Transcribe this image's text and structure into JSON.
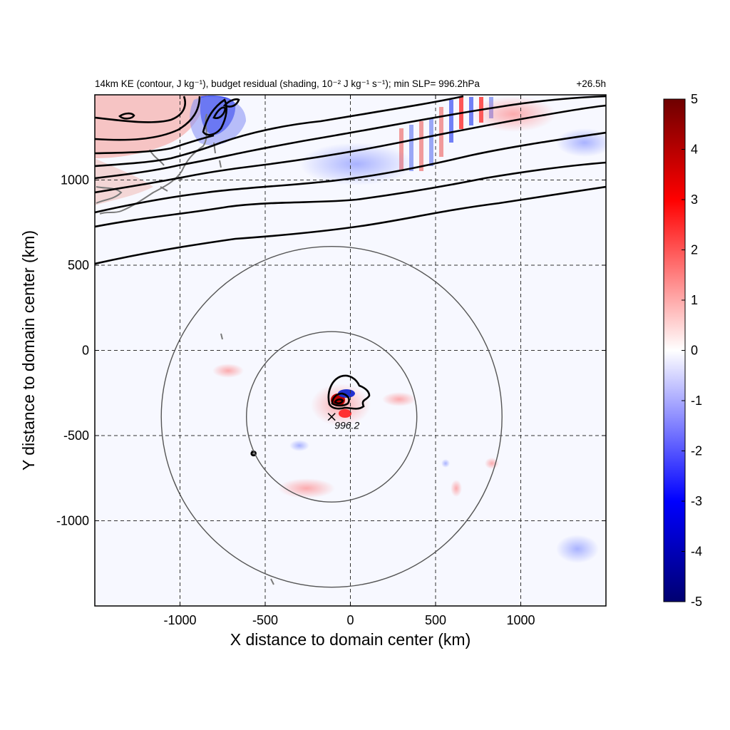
{
  "figure": {
    "title_left": "14km KE (contour, J kg⁻¹), budget residual (shading, 10⁻² J kg⁻¹ s⁻¹); min SLP= 996.2hPa",
    "title_right": "+26.5h"
  },
  "chart_data": {
    "type": "heatmap",
    "xlabel": "X distance to domain center (km)",
    "ylabel": "Y distance to domain center (km)",
    "xlim": [
      -1500,
      1500
    ],
    "ylim": [
      -1500,
      1500
    ],
    "xticks": [
      -1000,
      -500,
      0,
      500,
      1000
    ],
    "yticks": [
      -1000,
      -500,
      0,
      500,
      1000
    ],
    "grid": true,
    "colorbar": {
      "range": [
        -5,
        5
      ],
      "ticks": [
        5,
        4,
        3,
        2,
        1,
        0,
        -1,
        -2,
        -3,
        -4,
        -5
      ],
      "colormap": "blue-white-red",
      "colors": {
        "low": "#000070",
        "mid": "#ffffff",
        "high": "#6e0000"
      }
    },
    "storm_center": {
      "x": -110,
      "y": -390,
      "label": "996.2"
    },
    "range_rings_center": [
      -110,
      -390
    ],
    "range_rings_radius_km": [
      500,
      1000
    ]
  }
}
